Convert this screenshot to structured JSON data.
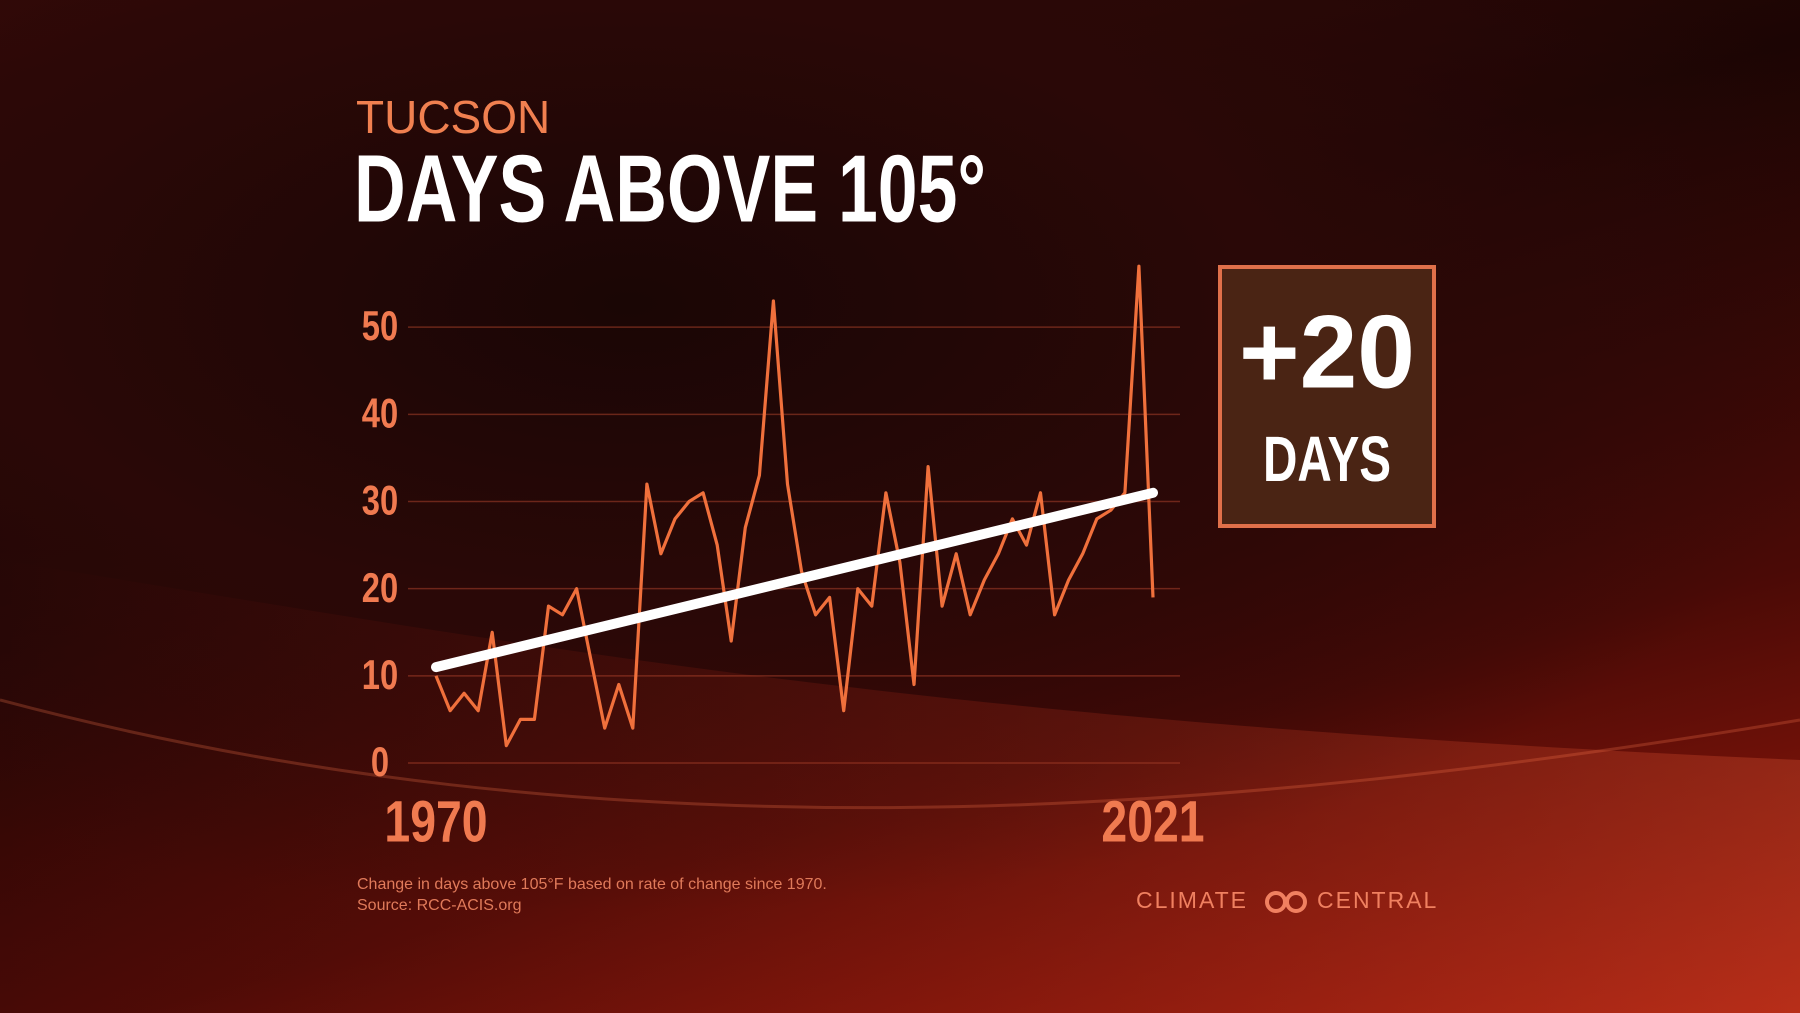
{
  "chart_data": {
    "type": "line",
    "subtitle": "TUCSON",
    "title": "DAYS ABOVE 105°",
    "x": [
      1970,
      1971,
      1972,
      1973,
      1974,
      1975,
      1976,
      1977,
      1978,
      1979,
      1980,
      1981,
      1982,
      1983,
      1984,
      1985,
      1986,
      1987,
      1988,
      1989,
      1990,
      1991,
      1992,
      1993,
      1994,
      1995,
      1996,
      1997,
      1998,
      1999,
      2000,
      2001,
      2002,
      2003,
      2004,
      2005,
      2006,
      2007,
      2008,
      2009,
      2010,
      2011,
      2012,
      2013,
      2014,
      2015,
      2016,
      2017,
      2018,
      2019,
      2020,
      2021
    ],
    "series": [
      {
        "color": "#f0703c",
        "values": [
          10,
          6,
          8,
          6,
          15,
          2,
          5,
          5,
          18,
          17,
          20,
          12,
          4,
          9,
          4,
          32,
          24,
          28,
          30,
          31,
          25,
          14,
          27,
          33,
          53,
          32,
          22,
          17,
          19,
          6,
          20,
          18,
          31,
          23,
          9,
          34,
          18,
          24,
          17,
          21,
          24,
          28,
          25,
          31,
          17,
          21,
          24,
          28,
          29,
          31,
          57,
          19
        ]
      }
    ],
    "trend": {
      "color": "#ffffff",
      "x": [
        1970,
        2021
      ],
      "values": [
        11,
        31
      ]
    },
    "xlim": [
      1970,
      2021
    ],
    "xticks": [
      1970,
      2021
    ],
    "ylim": [
      0,
      60
    ],
    "yticks": [
      0,
      10,
      20,
      30,
      40,
      50
    ],
    "grid": true,
    "badge": {
      "value": "+20",
      "label": "DAYS"
    },
    "notes": [
      "Change in days above 105°F based on rate of change since 1970.",
      "Source: RCC-ACIS.org"
    ],
    "logo": [
      "CLIMATE",
      "CENTRAL"
    ]
  }
}
